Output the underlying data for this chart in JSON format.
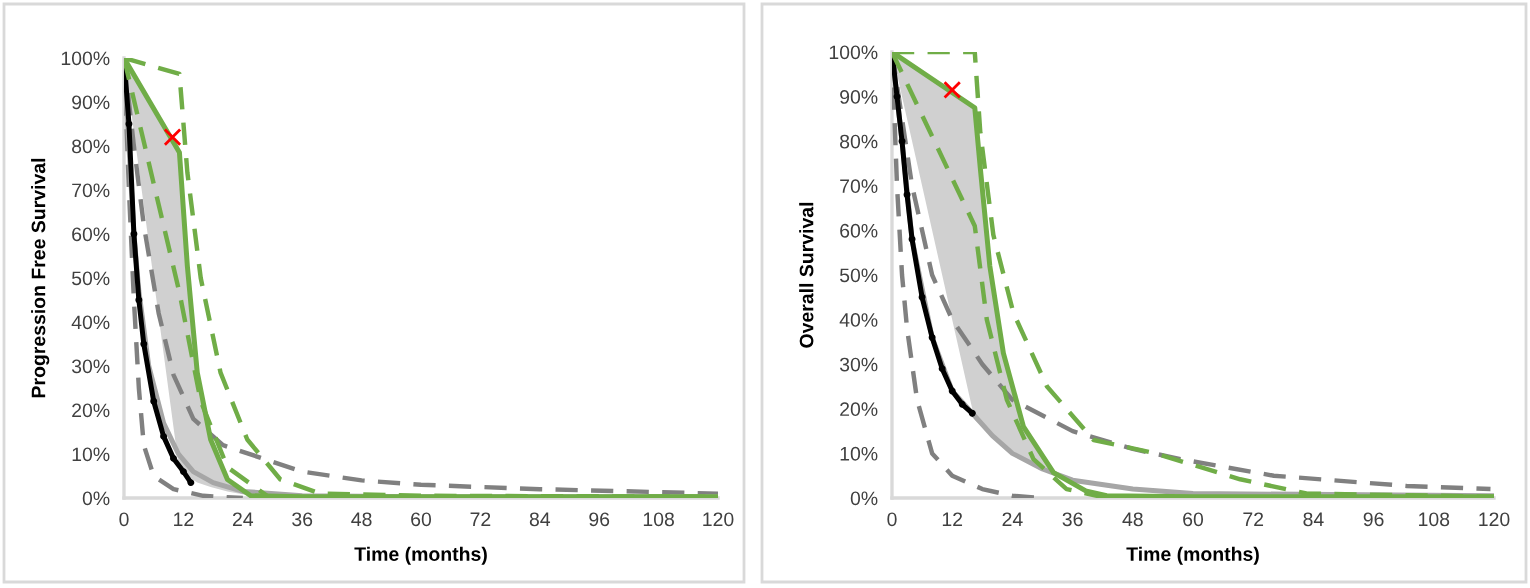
{
  "chart_data": [
    {
      "type": "line",
      "xlabel": "Time (months)",
      "ylabel": "Progression Free Survival",
      "xlim": [
        0,
        120
      ],
      "ylim": [
        0,
        100
      ],
      "xticks": [
        0,
        12,
        24,
        36,
        48,
        60,
        72,
        84,
        96,
        108,
        120
      ],
      "yticks": [
        {
          "value": 0,
          "label": "0%"
        },
        {
          "value": 10,
          "label": "10%"
        },
        {
          "value": 20,
          "label": "20%"
        },
        {
          "value": 30,
          "label": "30%"
        },
        {
          "value": 40,
          "label": "40%"
        },
        {
          "value": 50,
          "label": "50%"
        },
        {
          "value": 60,
          "label": "60%"
        },
        {
          "value": 70,
          "label": "70%"
        },
        {
          "value": 80,
          "label": "80%"
        },
        {
          "value": 90,
          "label": "90%"
        },
        {
          "value": 100,
          "label": "100%"
        }
      ],
      "grid": false,
      "series": [
        {
          "color": "#808080",
          "line_style": "dashed",
          "x": [
            0,
            1,
            2,
            3,
            4,
            6,
            10,
            16,
            24
          ],
          "values": [
            100,
            70,
            45,
            25,
            12,
            5,
            2,
            0.5,
            0
          ]
        },
        {
          "type": "line",
          "color": "#808080",
          "line_style": "dashed",
          "x": [
            0,
            2,
            4,
            7,
            10,
            14,
            20,
            28,
            36,
            48,
            60,
            84,
            120
          ],
          "values": [
            100,
            80,
            62,
            42,
            28,
            18,
            12,
            9,
            6,
            4,
            3,
            2,
            1
          ]
        },
        {
          "type": "line",
          "color": "#a6a6a6",
          "line_style": "solid",
          "x": [
            0,
            1,
            2,
            3,
            5,
            8,
            11,
            14,
            18,
            24,
            36,
            60,
            120
          ],
          "values": [
            100,
            80,
            60,
            47,
            30,
            17,
            10,
            6,
            3.5,
            1.5,
            0.5,
            0.3,
            0.3
          ]
        },
        {
          "type": "line",
          "color": "#000000",
          "line_style": "solid",
          "marker": "circle",
          "x": [
            0,
            1,
            2,
            3,
            4,
            6,
            8,
            10,
            12,
            13.5
          ],
          "values": [
            100,
            85,
            60,
            45,
            35,
            22,
            14,
            9,
            6,
            3.5
          ]
        },
        {
          "type": "line",
          "color": "#70ad47",
          "line_style": "dashed",
          "x": [
            0,
            11.2,
            15.5,
            20.9,
            28.9
          ],
          "values": [
            100,
            46.7,
            22,
            7,
            0.5
          ]
        },
        {
          "type": "line",
          "color": "#70ad47",
          "line_style": "dashed",
          "x": [
            0,
            11.2,
            12.8,
            15.5,
            19.5,
            24.9,
            31.6,
            39.7,
            60,
            120
          ],
          "values": [
            100,
            96.4,
            74,
            50,
            28.5,
            13.3,
            4.2,
            1,
            0.5,
            0.3
          ]
        },
        {
          "type": "line",
          "color": "#70ad47",
          "line_style": "solid",
          "x": [
            0,
            11.2,
            12.8,
            14.8,
            17.5,
            20.9,
            25.6,
            36,
            60,
            90,
            120
          ],
          "values": [
            100,
            78.5,
            52.7,
            28.5,
            13.3,
            4.2,
            0.5,
            0.3,
            0.3,
            0.3,
            0.3
          ],
          "lower": [
            100,
            6,
            5,
            3.5,
            2.5,
            1.5,
            0.5,
            0.3,
            0.3,
            0.3,
            0.3
          ],
          "upper": [
            100,
            78.5,
            52.7,
            28.5,
            13.3,
            4.2,
            0.5,
            0.3,
            0.3,
            0.3,
            0.3
          ]
        },
        {
          "type": "scatter",
          "color": "#ff0000",
          "marker": "cross",
          "x": [
            9.8
          ],
          "values": [
            82
          ]
        }
      ]
    },
    {
      "type": "line",
      "xlabel": "Time (months)",
      "ylabel": "Overall Survival",
      "xlim": [
        0,
        120
      ],
      "ylim": [
        0,
        100
      ],
      "xticks": [
        0,
        12,
        24,
        36,
        48,
        60,
        72,
        84,
        96,
        108,
        120
      ],
      "yticks": [
        {
          "value": 0,
          "label": "0%"
        },
        {
          "value": 10,
          "label": "10%"
        },
        {
          "value": 20,
          "label": "20%"
        },
        {
          "value": 30,
          "label": "30%"
        },
        {
          "value": 40,
          "label": "40%"
        },
        {
          "value": 50,
          "label": "50%"
        },
        {
          "value": 60,
          "label": "60%"
        },
        {
          "value": 70,
          "label": "70%"
        },
        {
          "value": 80,
          "label": "80%"
        },
        {
          "value": 90,
          "label": "90%"
        },
        {
          "value": 100,
          "label": "100%"
        }
      ],
      "grid": false,
      "series": [
        {
          "color": "#808080",
          "line_style": "dashed",
          "x": [
            0,
            1,
            2,
            3,
            5,
            8,
            12,
            18,
            24,
            30
          ],
          "values": [
            100,
            70,
            50,
            38,
            22,
            10,
            5,
            2,
            0.5,
            0
          ]
        },
        {
          "type": "line",
          "color": "#808080",
          "line_style": "dashed",
          "x": [
            0,
            2,
            4,
            8,
            12,
            18,
            24,
            36,
            48,
            57.5,
            76.1,
            102.6,
            119.3
          ],
          "values": [
            100,
            85,
            70,
            50,
            40,
            30,
            22,
            15,
            11,
            8.7,
            5,
            2.7,
            2
          ]
        },
        {
          "type": "line",
          "color": "#a6a6a6",
          "line_style": "solid",
          "x": [
            0,
            2,
            4,
            8,
            12,
            16,
            20,
            24,
            30,
            36,
            48,
            60,
            120
          ],
          "values": [
            100,
            80,
            58,
            36,
            24,
            19,
            14,
            10,
            6.5,
            4,
            2,
            1,
            0.5
          ]
        },
        {
          "type": "line",
          "color": "#000000",
          "line_style": "solid",
          "marker": "circle",
          "x": [
            0,
            1,
            2,
            3,
            4,
            6,
            8,
            10,
            12,
            14,
            16
          ],
          "values": [
            100,
            90,
            80,
            68,
            58,
            45,
            36,
            29,
            24,
            21,
            19
          ]
        },
        {
          "type": "line",
          "color": "#70ad47",
          "line_style": "dashed",
          "x": [
            0,
            16.5,
            18.9,
            22.9,
            28.2,
            34.8,
            42.8
          ],
          "values": [
            100,
            61,
            40,
            22,
            8.7,
            2,
            0
          ]
        },
        {
          "type": "line",
          "color": "#70ad47",
          "line_style": "dashed",
          "x": [
            0,
            16.5,
            17.6,
            20.2,
            24.2,
            30.9,
            40.2,
            52.2,
            69.4,
            82.6,
            120
          ],
          "values": [
            100,
            100,
            82,
            59,
            41.5,
            25,
            13,
            10.1,
            4.2,
            1,
            0.3
          ]
        },
        {
          "type": "line",
          "color": "#70ad47",
          "line_style": "solid",
          "x": [
            0,
            16.5,
            17.6,
            19.5,
            22.2,
            26.2,
            32.2,
            38.8,
            42.8,
            60,
            90,
            120
          ],
          "values": [
            100,
            87.5,
            74,
            52,
            32.5,
            16,
            5.7,
            1.5,
            0.5,
            0.3,
            0.3,
            0.3
          ],
          "lower": [
            100,
            17.5,
            16.5,
            14.5,
            12,
            9,
            5.5,
            1.5,
            0.5,
            0.3,
            0.3,
            0.3
          ],
          "upper": [
            100,
            87.5,
            74,
            52,
            32.5,
            16,
            5.7,
            1.5,
            0.5,
            0.3,
            0.3,
            0.3
          ]
        },
        {
          "type": "scatter",
          "color": "#ff0000",
          "marker": "cross",
          "x": [
            12
          ],
          "values": [
            91.5
          ]
        }
      ]
    }
  ]
}
